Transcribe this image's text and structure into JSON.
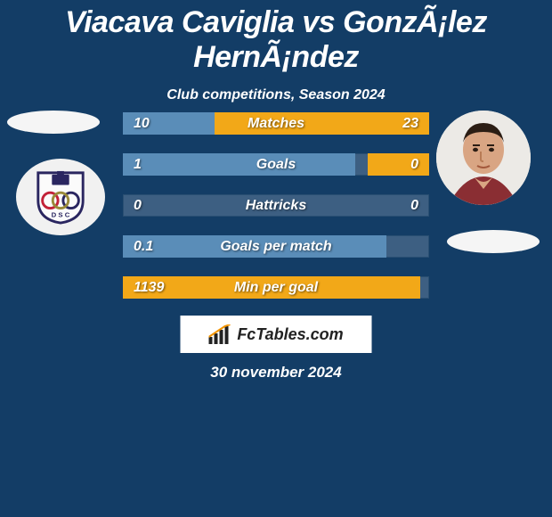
{
  "title": "Viacava Caviglia vs GonzÃ¡lez HernÃ¡ndez",
  "subtitle": "Club competitions, Season 2024",
  "date": "30 november 2024",
  "branding": "FcTables.com",
  "colors": {
    "background": "#133d66",
    "bar_bg": "#3d5f82",
    "fill_left": "#5a8db8",
    "fill_right": "#f2a818",
    "text": "#ffffff"
  },
  "stats": [
    {
      "label": "Matches",
      "left_val": "10",
      "right_val": "23",
      "left_fill_pct": 30,
      "right_fill_pct": 70,
      "left_color": "#5a8db8",
      "right_color": "#f2a818"
    },
    {
      "label": "Goals",
      "left_val": "1",
      "right_val": "0",
      "left_fill_pct": 76,
      "right_fill_pct": 20,
      "left_color": "#5a8db8",
      "right_color": "#f2a818"
    },
    {
      "label": "Hattricks",
      "left_val": "0",
      "right_val": "0",
      "left_fill_pct": 0,
      "right_fill_pct": 0,
      "left_color": "#5a8db8",
      "right_color": "#f2a818"
    },
    {
      "label": "Goals per match",
      "left_val": "0.1",
      "right_val": "",
      "left_fill_pct": 86,
      "right_fill_pct": 0,
      "left_color": "#5a8db8",
      "right_color": "#f2a818"
    },
    {
      "label": "Min per goal",
      "left_val": "1139",
      "right_val": "",
      "left_fill_pct": 97,
      "right_fill_pct": 0,
      "left_color": "#f2a818",
      "right_color": "#5a8db8"
    }
  ]
}
